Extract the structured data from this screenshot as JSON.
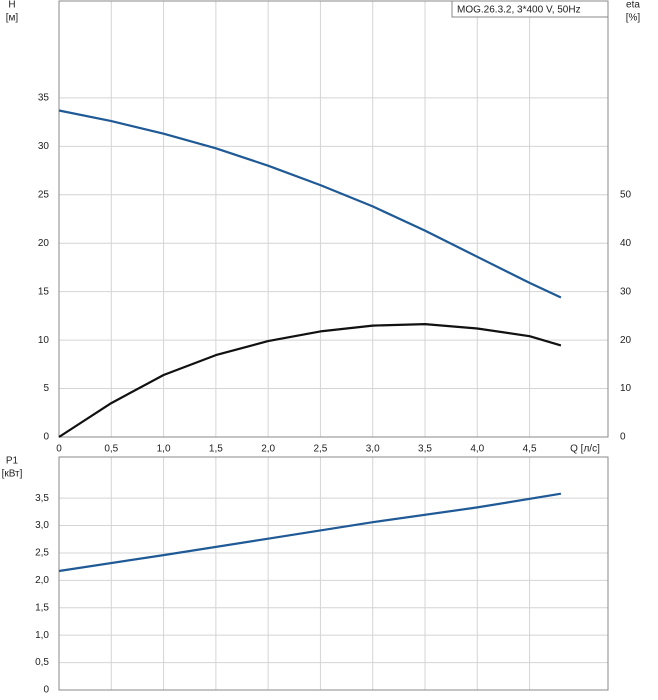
{
  "chart_data": [
    {
      "type": "line",
      "annotation": "MOG.26.3.2, 3*400 V, 50Hz",
      "y_label": "H",
      "y_unit": "[м]",
      "y2_label": "eta",
      "y2_unit": "[%]",
      "x_label": "Q [л/с]",
      "x": [
        0,
        0.5,
        1.0,
        1.5,
        2.0,
        2.5,
        3.0,
        3.5,
        4.0,
        4.5,
        4.8
      ],
      "xlim": [
        0,
        5.25
      ],
      "xticks": [
        0,
        {
          "value": 0.5,
          "label": "0,5"
        },
        {
          "value": 1.0,
          "label": "1,0"
        },
        {
          "value": 1.5,
          "label": "1,5"
        },
        {
          "value": 2.0,
          "label": "2,0"
        },
        {
          "value": 2.5,
          "label": "2,5"
        },
        {
          "value": 3.0,
          "label": "3,0"
        },
        {
          "value": 3.5,
          "label": "3,5"
        },
        {
          "value": 4.0,
          "label": "4,0"
        },
        {
          "value": 4.5,
          "label": "4,5"
        }
      ],
      "ylim": [
        0,
        45
      ],
      "yticks": [
        0,
        5,
        10,
        15,
        20,
        25,
        30,
        35
      ],
      "y2lim": [
        0,
        90
      ],
      "y2ticks": [
        0,
        10,
        20,
        30,
        40,
        50
      ],
      "grid": true,
      "series": [
        {
          "name": "H",
          "color": "#1f5a96",
          "values": [
            33.7,
            32.6,
            31.3,
            29.8,
            28.0,
            26.0,
            23.8,
            21.3,
            18.6,
            15.9,
            14.4
          ]
        },
        {
          "name": "eta",
          "color": "#111111",
          "axis": "y2",
          "values": [
            0,
            7,
            12.8,
            16.9,
            19.8,
            21.8,
            23.0,
            23.3,
            22.4,
            20.8,
            18.9
          ]
        }
      ]
    },
    {
      "type": "line",
      "y_label": "P1",
      "y_unit": "[кВт]",
      "x": [
        0,
        1,
        2,
        3,
        4,
        4.8
      ],
      "xlim": [
        0,
        5.25
      ],
      "xticks": [
        0,
        0.5,
        1.0,
        1.5,
        2.0,
        2.5,
        3.0,
        3.5,
        4.0,
        4.5
      ],
      "ylim": [
        0,
        4.25
      ],
      "yticks": [
        0,
        {
          "value": 0.5,
          "label": "0,5"
        },
        {
          "value": 1.0,
          "label": "1,0"
        },
        {
          "value": 1.5,
          "label": "1,5"
        },
        {
          "value": 2.0,
          "label": "2,0"
        },
        {
          "value": 2.5,
          "label": "2,5"
        },
        {
          "value": 3.0,
          "label": "3,0"
        },
        {
          "value": 3.5,
          "label": "3,5"
        }
      ],
      "grid": true,
      "series": [
        {
          "name": "P1",
          "color": "#1f5a96",
          "values": [
            2.17,
            2.46,
            2.76,
            3.06,
            3.33,
            3.58
          ]
        }
      ]
    }
  ]
}
